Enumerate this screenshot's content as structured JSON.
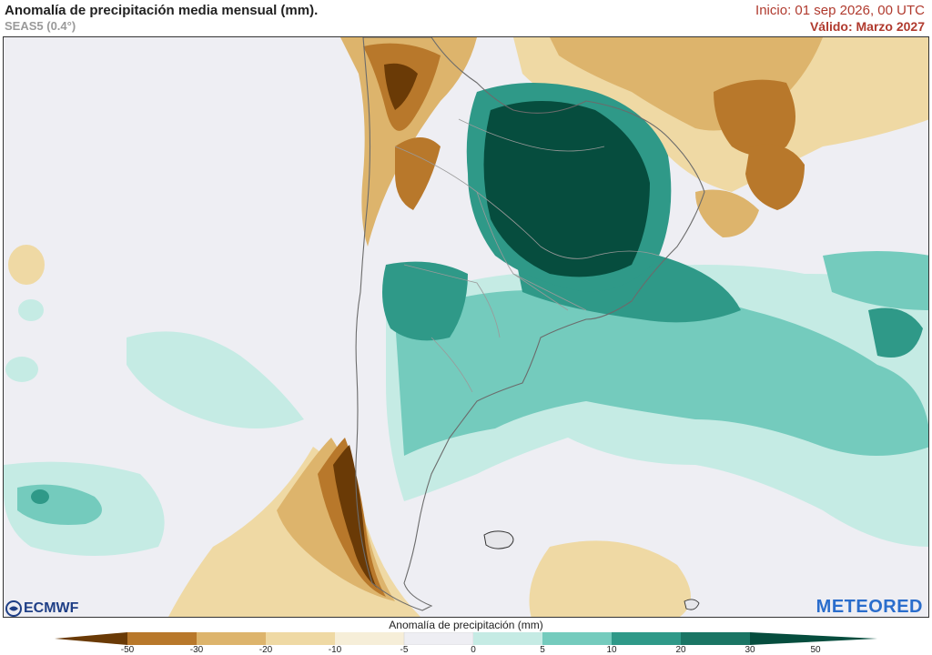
{
  "header": {
    "title": "Anomalía de precipitación media mensual (mm).",
    "subtitle": "SEAS5 (0.4°)",
    "init": "Inicio: 01 sep 2026, 00 UTC",
    "valid": "Válido: Marzo 2027"
  },
  "legend": {
    "title": "Anomalía de precipitación (mm)",
    "ticks": [
      "-50",
      "-30",
      "-20",
      "-10",
      "-5",
      "0",
      "5",
      "10",
      "20",
      "30",
      "50"
    ],
    "colors": {
      "lt_-30": "#6a3a06",
      "-30_-20": "#b8782b",
      "-20_-10": "#ddb46c",
      "-10_-5": "#efd9a4",
      "-5_0": "#f6eed8",
      "0_5": "#eeeef3",
      "5_10": "#c5ebe4",
      "10_20": "#74cbbd",
      "20_30": "#2f9988",
      "gt_30": "#064d3e"
    }
  },
  "logos": {
    "left": "ECMWF",
    "right": "METEORED"
  }
}
